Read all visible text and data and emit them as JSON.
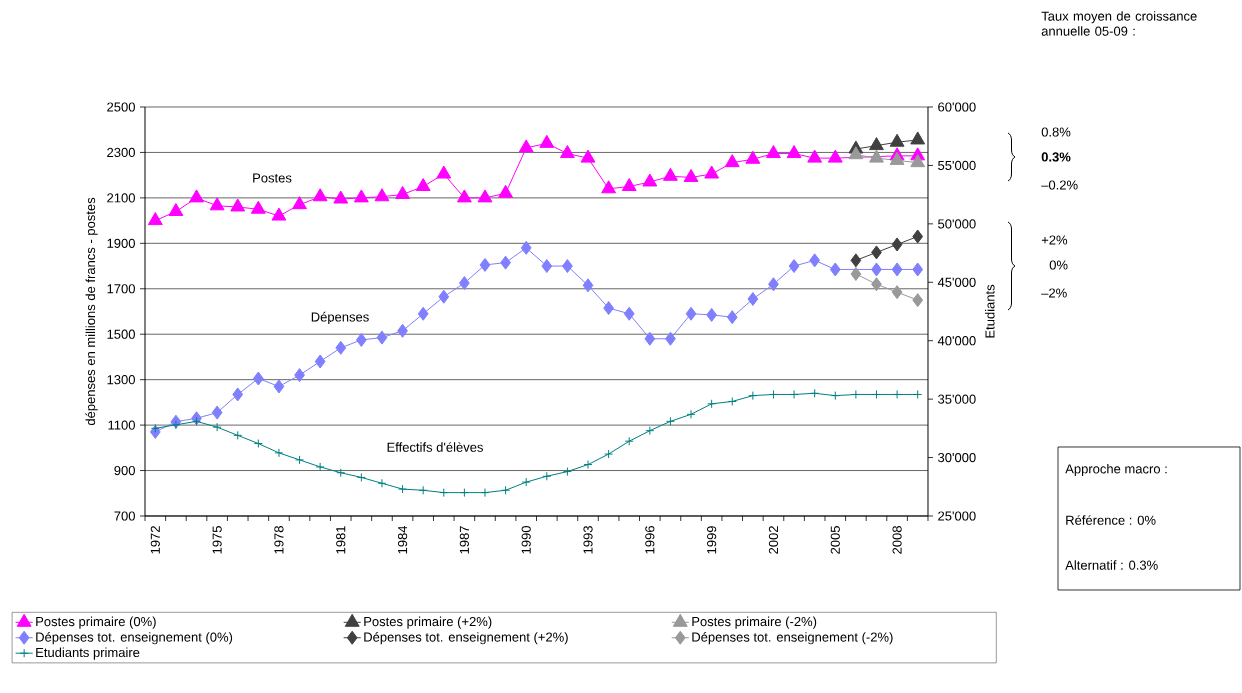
{
  "chart_data": {
    "type": "line",
    "categories": [
      "1972",
      null,
      null,
      "1975",
      null,
      null,
      "1978",
      null,
      null,
      "1981",
      null,
      null,
      "1984",
      null,
      null,
      "1987",
      null,
      null,
      "1990",
      null,
      null,
      "1993",
      null,
      null,
      "1996",
      null,
      null,
      "1999",
      null,
      null,
      "2002",
      null,
      null,
      "2005",
      null,
      null,
      "2008",
      null
    ],
    "ylabel": "dépenses en millions de francs - postes",
    "y2label": "Etudiants",
    "ylim": [
      700,
      2500
    ],
    "yticks": [
      700,
      900,
      1100,
      1300,
      1500,
      1700,
      1900,
      2100,
      2300,
      2500
    ],
    "y2lim": [
      25000,
      60000
    ],
    "y2ticks": [
      {
        "value": 25000,
        "label": "25'000"
      },
      {
        "value": 30000,
        "label": "30'000"
      },
      {
        "value": 35000,
        "label": "35'000"
      },
      {
        "value": 40000,
        "label": "40'000"
      },
      {
        "value": 45000,
        "label": "45'000"
      },
      {
        "value": 50000,
        "label": "50'000"
      },
      {
        "value": 55000,
        "label": "55'000"
      },
      {
        "value": 60000,
        "label": "60'000"
      }
    ],
    "grid": "y",
    "legend": "bottom",
    "series": [
      {
        "name": "Postes primaire (0%)",
        "color": "#ff00ff",
        "marker": "triangle",
        "values": [
          2000,
          2040,
          2100,
          2065,
          2060,
          2050,
          2020,
          2070,
          2105,
          2095,
          2100,
          2105,
          2115,
          2150,
          2205,
          2100,
          2100,
          2120,
          2320,
          2340,
          2295,
          2275,
          2140,
          2150,
          2170,
          2195,
          2190,
          2205,
          2255,
          2270,
          2295,
          2295,
          2275,
          2275,
          null,
          null,
          2285,
          2285
        ]
      },
      {
        "name": "Postes primaire (+2%)",
        "color": "#404040",
        "marker": "triangle",
        "values": [
          null,
          null,
          null,
          null,
          null,
          null,
          null,
          null,
          null,
          null,
          null,
          null,
          null,
          null,
          null,
          null,
          null,
          null,
          null,
          null,
          null,
          null,
          null,
          null,
          null,
          null,
          null,
          null,
          null,
          null,
          null,
          null,
          null,
          null,
          2315,
          2330,
          2345,
          2355
        ]
      },
      {
        "name": "Postes primaire (-2%)",
        "color": "#999999",
        "marker": "triangle",
        "values": [
          null,
          null,
          null,
          null,
          null,
          null,
          null,
          null,
          null,
          null,
          null,
          null,
          null,
          null,
          null,
          null,
          null,
          null,
          null,
          null,
          null,
          null,
          null,
          null,
          null,
          null,
          null,
          null,
          null,
          null,
          null,
          null,
          null,
          null,
          2290,
          2275,
          2265,
          2255
        ]
      },
      {
        "name": "Dépenses tot. enseignement (0%)",
        "color": "#8080ff",
        "marker": "diamond",
        "values": [
          1070,
          1115,
          1130,
          1155,
          1235,
          1305,
          1270,
          1320,
          1380,
          1440,
          1475,
          1485,
          1515,
          1590,
          1665,
          1725,
          1805,
          1815,
          1880,
          1800,
          1800,
          1715,
          1615,
          1590,
          1480,
          1480,
          1590,
          1585,
          1575,
          1655,
          1720,
          1800,
          1825,
          1785,
          null,
          1785,
          1785,
          1785
        ]
      },
      {
        "name": "Dépenses tot. enseignement (+2%)",
        "color": "#404040",
        "marker": "diamond",
        "values": [
          null,
          null,
          null,
          null,
          null,
          null,
          null,
          null,
          null,
          null,
          null,
          null,
          null,
          null,
          null,
          null,
          null,
          null,
          null,
          null,
          null,
          null,
          null,
          null,
          null,
          null,
          null,
          null,
          null,
          null,
          null,
          null,
          null,
          null,
          1825,
          1860,
          1895,
          1930
        ]
      },
      {
        "name": "Dépenses tot. enseignement (-2%)",
        "color": "#999999",
        "marker": "diamond",
        "values": [
          null,
          null,
          null,
          null,
          null,
          null,
          null,
          null,
          null,
          null,
          null,
          null,
          null,
          null,
          null,
          null,
          null,
          null,
          null,
          null,
          null,
          null,
          null,
          null,
          null,
          null,
          null,
          null,
          null,
          null,
          null,
          null,
          null,
          null,
          1765,
          1720,
          1685,
          1650
        ]
      },
      {
        "name": "Etudiants primaire",
        "color": "#008080",
        "marker": "cross",
        "axis": "y2",
        "values": [
          32500,
          32800,
          33100,
          32600,
          31900,
          31200,
          30400,
          29800,
          29200,
          28700,
          28300,
          27800,
          27300,
          27200,
          27000,
          27000,
          27000,
          27200,
          27900,
          28400,
          28800,
          29400,
          30300,
          31400,
          32300,
          33100,
          33700,
          34600,
          34800,
          35300,
          35400,
          35400,
          35500,
          35300,
          35400,
          35400,
          35400,
          35400
        ]
      }
    ],
    "annotations": [
      "Postes",
      "Dépenses",
      "Effectifs d'élèves",
      "Taux moyen de croissance annuelle 05-09 :",
      "0.8%",
      "0.3%",
      "–0.2%",
      "+2%",
      "0%",
      "–2%",
      "Approche macro :",
      "Référence : 0%",
      "Alternatif : 0.3%"
    ]
  }
}
